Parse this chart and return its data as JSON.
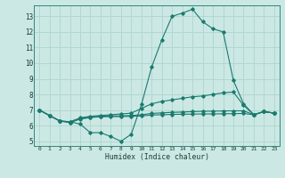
{
  "xlabel": "Humidex (Indice chaleur)",
  "bg_color": "#cce8e4",
  "grid_color": "#b0d8d0",
  "line_color": "#1a7a6e",
  "xlim": [
    -0.5,
    23.5
  ],
  "ylim": [
    4.7,
    13.7
  ],
  "xticks": [
    0,
    1,
    2,
    3,
    4,
    5,
    6,
    7,
    8,
    9,
    10,
    11,
    12,
    13,
    14,
    15,
    16,
    17,
    18,
    19,
    20,
    21,
    22,
    23
  ],
  "yticks": [
    5,
    6,
    7,
    8,
    9,
    10,
    11,
    12,
    13
  ],
  "lines": [
    {
      "x": [
        0,
        1,
        2,
        3,
        4,
        5,
        6,
        7,
        8,
        9,
        10,
        11,
        12,
        13,
        14,
        15,
        16,
        17,
        18,
        19,
        20,
        21,
        22,
        23
      ],
      "y": [
        7.0,
        6.65,
        6.3,
        6.25,
        6.1,
        5.55,
        5.55,
        5.3,
        5.0,
        5.45,
        7.35,
        9.75,
        11.5,
        13.0,
        13.2,
        13.45,
        12.65,
        12.2,
        12.0,
        8.9,
        7.4,
        6.7,
        6.9,
        6.8
      ]
    },
    {
      "x": [
        0,
        1,
        2,
        3,
        4,
        5,
        6,
        7,
        8,
        9,
        10,
        11,
        12,
        13,
        14,
        15,
        16,
        17,
        18,
        19,
        20,
        21,
        22,
        23
      ],
      "y": [
        7.0,
        6.65,
        6.3,
        6.25,
        6.5,
        6.6,
        6.65,
        6.7,
        6.75,
        6.8,
        7.1,
        7.4,
        7.55,
        7.65,
        7.75,
        7.85,
        7.9,
        8.0,
        8.1,
        8.15,
        7.3,
        6.7,
        6.9,
        6.8
      ]
    },
    {
      "x": [
        0,
        1,
        2,
        3,
        4,
        5,
        6,
        7,
        8,
        9,
        10,
        11,
        12,
        13,
        14,
        15,
        16,
        17,
        18,
        19,
        20,
        21,
        22,
        23
      ],
      "y": [
        7.0,
        6.65,
        6.3,
        6.2,
        6.45,
        6.55,
        6.6,
        6.62,
        6.63,
        6.65,
        6.7,
        6.78,
        6.82,
        6.85,
        6.87,
        6.9,
        6.92,
        6.93,
        6.94,
        6.95,
        6.95,
        6.7,
        6.9,
        6.8
      ]
    },
    {
      "x": [
        0,
        1,
        2,
        3,
        4,
        5,
        6,
        7,
        8,
        9,
        10,
        11,
        12,
        13,
        14,
        15,
        16,
        17,
        18,
        19,
        20,
        21,
        22,
        23
      ],
      "y": [
        7.0,
        6.65,
        6.3,
        6.2,
        6.42,
        6.52,
        6.57,
        6.58,
        6.58,
        6.6,
        6.62,
        6.68,
        6.7,
        6.72,
        6.73,
        6.74,
        6.75,
        6.75,
        6.76,
        6.77,
        6.78,
        6.7,
        6.9,
        6.8
      ]
    }
  ]
}
